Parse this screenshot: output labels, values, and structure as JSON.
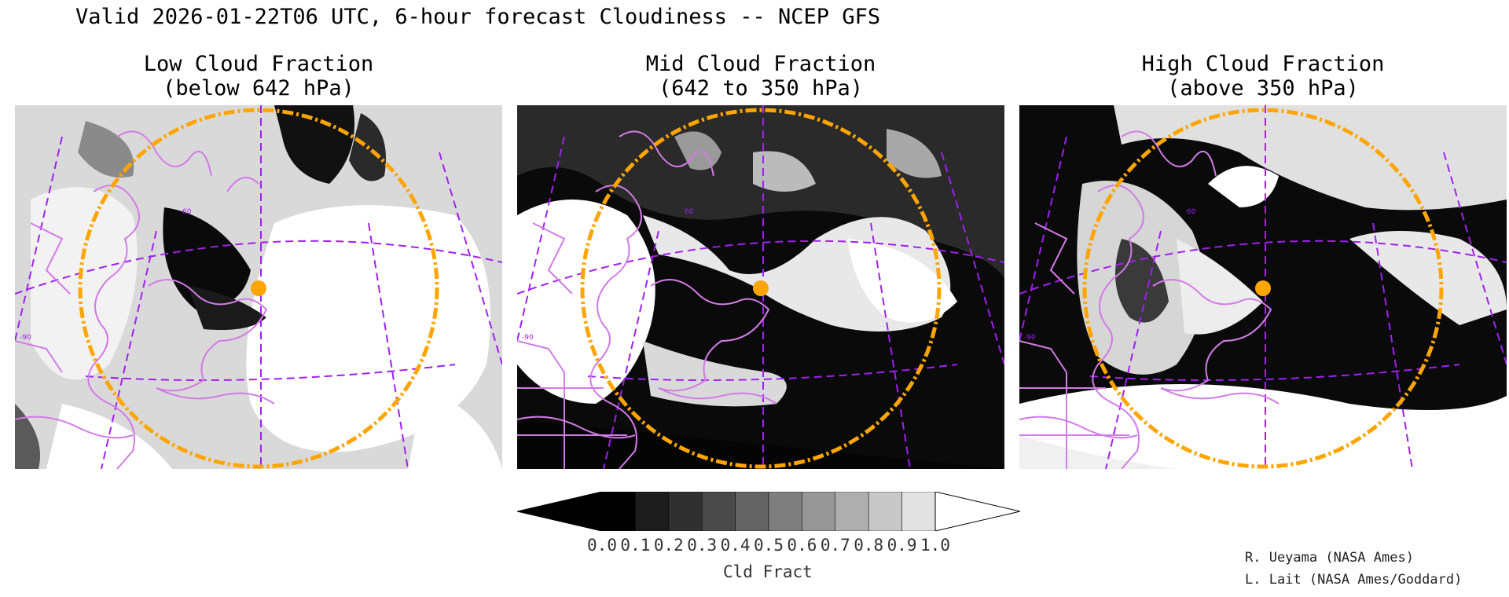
{
  "title": "Valid 2026-01-22T06 UTC, 6-hour forecast Cloudiness -- NCEP GFS",
  "panels": [
    {
      "line1": "Low Cloud Fraction",
      "line2": "(below 642 hPa)",
      "lat_label": "60",
      "lon_label": "-90"
    },
    {
      "line1": "Mid Cloud Fraction",
      "line2": "(642 to 350 hPa)",
      "lat_label": "60",
      "lon_label": "-90"
    },
    {
      "line1": "High Cloud Fraction",
      "line2": "(above 350 hPa)",
      "lat_label": "60",
      "lon_label": "-90"
    }
  ],
  "colorbar": {
    "label": "Cld Fract",
    "ticks": [
      "0.0",
      "0.1",
      "0.2",
      "0.3",
      "0.4",
      "0.5",
      "0.6",
      "0.7",
      "0.8",
      "0.9",
      "1.0"
    ],
    "colors": [
      "#000000",
      "#1c1c1c",
      "#303030",
      "#4a4a4a",
      "#646464",
      "#7e7e7e",
      "#969696",
      "#aeaeae",
      "#c8c8c8",
      "#e2e2e2"
    ]
  },
  "credits": [
    "R. Ueyama (NASA Ames)",
    "L. Lait (NASA Ames/Goddard)"
  ],
  "colors": {
    "boundary": "#d27be6",
    "grid": "#a020f0",
    "circle": "#ffa500",
    "marker": "#ffa500"
  }
}
